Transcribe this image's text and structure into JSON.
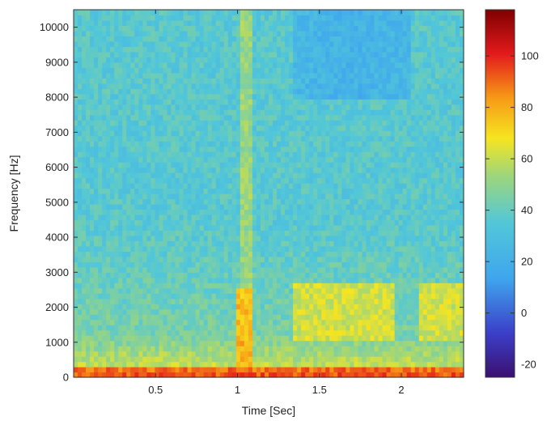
{
  "chart_data": {
    "type": "heatmap",
    "title": "",
    "xlabel": "Time [Sec]",
    "ylabel": "Frequency [Hz]",
    "xlim": [
      0,
      2.38
    ],
    "ylim": [
      0,
      10500
    ],
    "x_ticks": [
      0.5,
      1,
      1.5,
      2
    ],
    "x_tick_labels": [
      "0.5",
      "1",
      "1.5",
      "2"
    ],
    "y_ticks": [
      0,
      1000,
      2000,
      3000,
      4000,
      5000,
      6000,
      7000,
      8000,
      9000,
      10000
    ],
    "y_tick_labels": [
      "0",
      "1000",
      "2000",
      "3000",
      "4000",
      "5000",
      "6000",
      "7000",
      "8000",
      "9000",
      "10000"
    ],
    "colorbar": {
      "range": [
        -25,
        118
      ],
      "ticks": [
        -20,
        0,
        20,
        40,
        60,
        80,
        100
      ],
      "tick_labels": [
        "-20",
        "0",
        "20",
        "40",
        "60",
        "80",
        "100"
      ],
      "colormap": "jet"
    },
    "features": {
      "background_level": 32,
      "low_band": {
        "freq_range_hz": [
          0,
          250
        ],
        "level": 95
      },
      "transient_at_sec": 1.05,
      "transient_level": 72,
      "mid_band": {
        "time_range_sec": [
          1.35,
          2.38
        ],
        "freq_range_hz": [
          1000,
          2700
        ],
        "level": 62
      },
      "quiet_region": {
        "time_range_sec": [
          1.35,
          2.05
        ],
        "freq_range_hz": [
          8000,
          10500
        ],
        "level": 15
      }
    },
    "grid": false,
    "legend": "colorbar-right"
  }
}
